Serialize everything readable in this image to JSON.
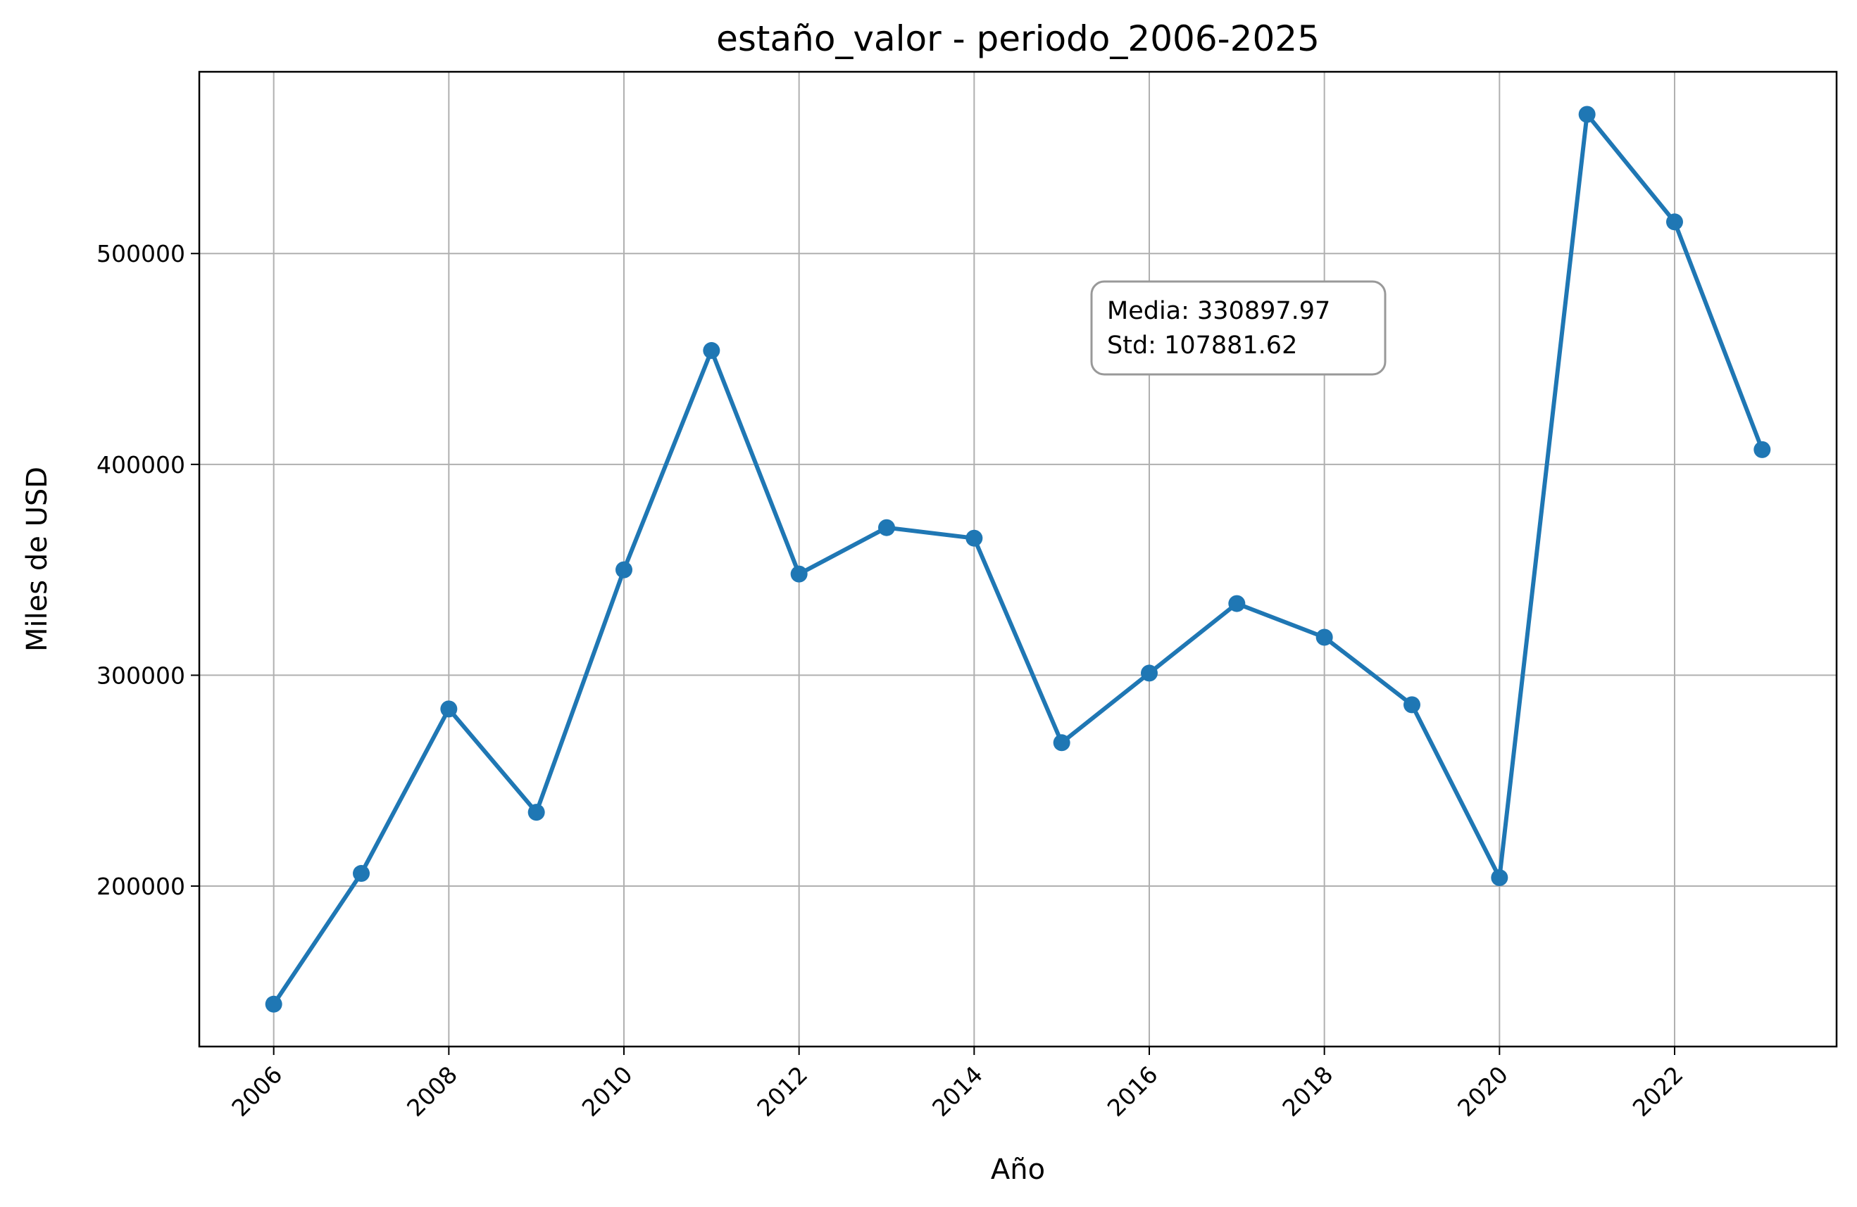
{
  "chart_data": {
    "type": "line",
    "title": "estaño_valor - periodo_2006-2025",
    "xlabel": "Año",
    "ylabel": "Miles de USD",
    "x": [
      2006,
      2007,
      2008,
      2009,
      2010,
      2011,
      2012,
      2013,
      2014,
      2015,
      2016,
      2017,
      2018,
      2019,
      2020,
      2021,
      2022,
      2023
    ],
    "series": [
      {
        "values": [
          144000,
          206000,
          284000,
          235000,
          350000,
          454000,
          348000,
          370000,
          365000,
          268000,
          301000,
          334000,
          318000,
          286000,
          204000,
          566000,
          515000,
          407000
        ],
        "color": "#1f77b4"
      }
    ],
    "xlim": [
      2005.15,
      2023.85
    ],
    "ylim": [
      123900,
      586200
    ],
    "xticks": [
      "2006",
      "2008",
      "2010",
      "2012",
      "2014",
      "2016",
      "2018",
      "2020",
      "2022"
    ],
    "yticks": [
      "200000",
      "300000",
      "400000",
      "500000"
    ],
    "grid": true,
    "annotation": {
      "lines": [
        "Media: 330897.97",
        "Std: 107881.62"
      ]
    }
  }
}
